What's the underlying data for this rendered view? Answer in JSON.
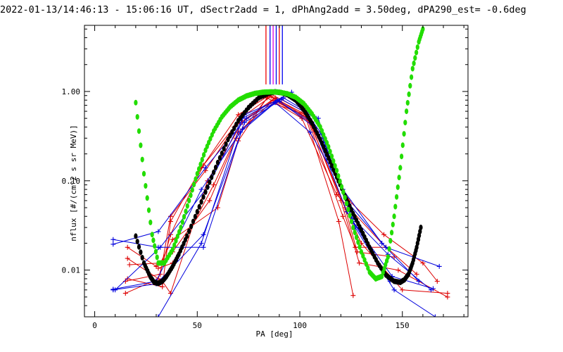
{
  "chart_data": {
    "type": "scatter",
    "title": "2022-01-13/14:46:13 - 15:06:16 UT, dSectr2add = 1, dPhAng2add = 3.50deg, dPA290_est=  -0.6deg",
    "xlabel": "PA [deg]",
    "ylabel": "nflux [#/(cm^2 s sr MeV)]",
    "xlim": [
      -5,
      182
    ],
    "ylim": [
      0.003,
      5.5
    ],
    "yscale": "log",
    "xticks": [
      0,
      50,
      100,
      150
    ],
    "xtick_labels": [
      "0",
      "50",
      "100",
      "150"
    ],
    "yticks": [
      0.01,
      0.1,
      1.0
    ],
    "ytick_labels": [
      "0.01",
      "0.10",
      "1.00"
    ],
    "colors": {
      "axes": "#000000",
      "red": "#dd0000",
      "blue": "#0000dd",
      "green": "#22dd00",
      "black": "#000000",
      "marker_lines": [
        "#ee0000",
        "#0000ee",
        "#dd00dd",
        "#0000ee",
        "#ee0000",
        "#0000ee"
      ]
    },
    "vertical_markers": {
      "x": [
        83.5,
        85.5,
        87.0,
        88.5,
        90.0,
        91.5
      ],
      "y_from": 1.2,
      "y_to": 5.5
    },
    "series": [
      {
        "color": "red",
        "marker": "plus",
        "x": [
          15,
          31,
          37,
          53,
          70,
          86,
          102,
          119,
          126
        ],
        "y": [
          0.0055,
          0.008,
          0.025,
          0.15,
          0.55,
          0.93,
          0.6,
          0.035,
          0.0052
        ]
      },
      {
        "color": "red",
        "marker": "plus",
        "x": [
          15,
          32,
          37,
          54,
          71,
          86,
          103,
          121,
          127,
          142
        ],
        "y": [
          0.0075,
          0.009,
          0.04,
          0.13,
          0.5,
          0.88,
          0.55,
          0.04,
          0.018,
          0.018
        ]
      },
      {
        "color": "red",
        "marker": "plus",
        "x": [
          16,
          33,
          37,
          55,
          72,
          87,
          104,
          122,
          128,
          146
        ],
        "y": [
          0.0135,
          0.0075,
          0.0055,
          0.1,
          0.45,
          0.8,
          0.5,
          0.05,
          0.016,
          0.014
        ]
      },
      {
        "color": "red",
        "marker": "plus",
        "x": [
          16,
          30,
          38,
          56,
          69,
          85,
          105,
          120,
          129,
          148,
          172
        ],
        "y": [
          0.018,
          0.011,
          0.016,
          0.06,
          0.3,
          0.9,
          0.45,
          0.06,
          0.012,
          0.01,
          0.005
        ]
      },
      {
        "color": "red",
        "marker": "plus",
        "x": [
          17,
          32,
          38,
          60,
          70,
          84,
          101,
          118,
          140,
          157
        ],
        "y": [
          0.0115,
          0.012,
          0.022,
          0.05,
          0.28,
          0.85,
          0.5,
          0.07,
          0.02,
          0.009
        ]
      },
      {
        "color": "red",
        "marker": "plus",
        "x": [
          16,
          33,
          37,
          52,
          68,
          88,
          104,
          123,
          130,
          150,
          172
        ],
        "y": [
          0.008,
          0.0065,
          0.035,
          0.14,
          0.4,
          0.85,
          0.5,
          0.045,
          0.02,
          0.006,
          0.0055
        ]
      },
      {
        "color": "red",
        "marker": "plus",
        "x": [
          31,
          38,
          58,
          70,
          86,
          103,
          124,
          141,
          160,
          167
        ],
        "y": [
          0.0105,
          0.012,
          0.09,
          0.35,
          0.75,
          0.55,
          0.06,
          0.025,
          0.012,
          0.0075
        ]
      },
      {
        "color": "blue",
        "marker": "plus",
        "x": [
          9,
          31,
          53,
          73,
          90,
          107,
          124,
          142,
          168
        ],
        "y": [
          0.022,
          0.018,
          0.018,
          0.45,
          0.78,
          0.4,
          0.055,
          0.018,
          0.011
        ]
      },
      {
        "color": "blue",
        "marker": "plus",
        "x": [
          9,
          30,
          53,
          72,
          89,
          106,
          123,
          144
        ],
        "y": [
          0.006,
          0.007,
          0.025,
          0.38,
          0.8,
          0.45,
          0.045,
          0.0075
        ]
      },
      {
        "color": "blue",
        "marker": "plus",
        "x": [
          9,
          31,
          54,
          74,
          91,
          108,
          125,
          143,
          164
        ],
        "y": [
          0.0195,
          0.027,
          0.14,
          0.5,
          0.82,
          0.5,
          0.04,
          0.015,
          0.006
        ]
      },
      {
        "color": "blue",
        "marker": "plus",
        "x": [
          9,
          30,
          52,
          71,
          88,
          105,
          121,
          140,
          158
        ],
        "y": [
          0.0061,
          0.0075,
          0.08,
          0.35,
          0.75,
          0.35,
          0.08,
          0.02,
          0.0075
        ]
      },
      {
        "color": "blue",
        "marker": "plus",
        "x": [
          10,
          32,
          55,
          73,
          92,
          109,
          126,
          145,
          165
        ],
        "y": [
          0.006,
          0.018,
          0.085,
          0.55,
          0.85,
          0.5,
          0.035,
          0.0085,
          0.0062
        ]
      },
      {
        "color": "blue",
        "marker": "plus",
        "x": [
          31,
          52,
          72,
          96,
          110,
          127,
          146,
          166
        ],
        "y": [
          0.003,
          0.02,
          0.5,
          0.98,
          0.35,
          0.03,
          0.006,
          0.003
        ]
      }
    ],
    "green_curve": {
      "color": "green",
      "x": [
        20,
        24,
        28,
        31,
        34,
        38,
        42,
        46,
        50,
        54,
        58,
        62,
        66,
        70,
        74,
        78,
        82,
        86,
        90,
        94,
        98,
        102,
        106,
        110,
        114,
        118,
        122,
        126,
        130,
        134,
        137,
        140,
        143,
        146,
        149,
        152,
        155,
        158,
        160
      ],
      "y": [
        0.75,
        0.12,
        0.025,
        0.012,
        0.012,
        0.017,
        0.03,
        0.06,
        0.12,
        0.22,
        0.36,
        0.52,
        0.67,
        0.8,
        0.89,
        0.95,
        0.98,
        0.99,
        0.98,
        0.94,
        0.86,
        0.73,
        0.56,
        0.4,
        0.24,
        0.13,
        0.065,
        0.03,
        0.016,
        0.0095,
        0.008,
        0.0085,
        0.014,
        0.04,
        0.14,
        0.6,
        1.8,
        3.6,
        5.0
      ]
    },
    "black_curve": {
      "color": "black",
      "x": [
        20,
        24,
        27,
        29,
        31,
        33,
        35,
        38,
        41,
        45,
        50,
        55,
        60,
        65,
        70,
        75,
        80,
        85,
        88,
        91,
        94,
        98,
        102,
        106,
        110,
        114,
        118,
        122,
        126,
        130,
        134,
        138,
        142,
        146,
        149,
        151,
        153,
        155,
        157,
        159
      ],
      "y": [
        0.024,
        0.012,
        0.0085,
        0.0073,
        0.0071,
        0.0075,
        0.0085,
        0.011,
        0.015,
        0.024,
        0.045,
        0.085,
        0.16,
        0.29,
        0.47,
        0.66,
        0.85,
        0.96,
        0.99,
        0.97,
        0.92,
        0.8,
        0.62,
        0.44,
        0.29,
        0.18,
        0.11,
        0.068,
        0.043,
        0.028,
        0.018,
        0.012,
        0.0088,
        0.0075,
        0.0073,
        0.0078,
        0.009,
        0.012,
        0.018,
        0.03
      ]
    }
  }
}
